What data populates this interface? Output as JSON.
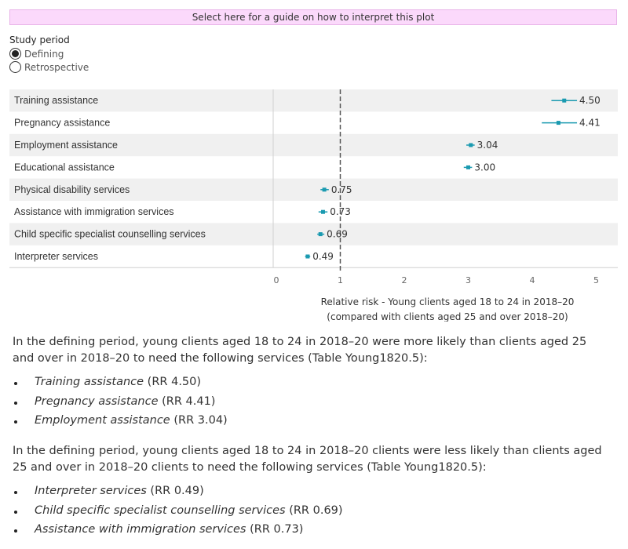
{
  "guide_button": "Select here for a guide on how to interpret this plot",
  "study_period": {
    "label": "Study period",
    "options": [
      "Defining",
      "Retrospective"
    ],
    "selected": "Defining"
  },
  "colors": {
    "marker": "#1a9ab0",
    "row_band": "#f0f0f0",
    "guide_bg": "#fbd9fb"
  },
  "chart_data": {
    "type": "scatter",
    "categories": [
      "Training assistance",
      "Pregnancy assistance",
      "Employment assistance",
      "Educational assistance",
      "Physical disability services",
      "Assistance with immigration services",
      "Child specific specialist counselling services",
      "Interpreter services"
    ],
    "values": [
      4.5,
      4.41,
      3.04,
      3.0,
      0.75,
      0.73,
      0.69,
      0.49
    ],
    "labels": [
      "4.50",
      "4.41",
      "3.04",
      "3.00",
      "0.75",
      "0.73",
      "0.69",
      "0.49"
    ],
    "ci_lower": [
      4.3,
      4.15,
      2.97,
      2.93,
      0.69,
      0.66,
      0.64,
      0.45
    ],
    "ci_upper": [
      4.7,
      4.7,
      3.1,
      3.06,
      0.82,
      0.8,
      0.75,
      0.53
    ],
    "reference_line": 1,
    "xlim": [
      -0.1,
      5.3
    ],
    "xticks": [
      "0",
      "1",
      "2",
      "3",
      "4",
      "5"
    ],
    "xlabel_line1": "Relative risk - Young clients aged 18 to 24 in 2018–20",
    "xlabel_line2": "(compared with clients aged 25 and over 2018–20)"
  },
  "summary": {
    "more_likely_intro": "In the defining period, young clients aged 18 to 24 in 2018–20 were more likely than clients aged 25 and over in 2018–20 to need the following services (Table Young1820.5):",
    "more_likely": [
      {
        "name": "Training assistance",
        "rr": "(RR 4.50)"
      },
      {
        "name": "Pregnancy assistance",
        "rr": "(RR 4.41)"
      },
      {
        "name": "Employment assistance",
        "rr": "(RR 3.04)"
      }
    ],
    "less_likely_intro": "In the defining period, young clients aged 18 to 24 in 2018–20 clients were less likely than clients aged 25 and over in 2018–20 clients to need the following services (Table Young1820.5):",
    "less_likely": [
      {
        "name": "Interpreter services",
        "rr": "(RR 0.49)"
      },
      {
        "name": "Child specific specialist counselling services",
        "rr": "(RR 0.69)"
      },
      {
        "name": "Assistance with immigration services",
        "rr": "(RR 0.73)"
      }
    ]
  }
}
